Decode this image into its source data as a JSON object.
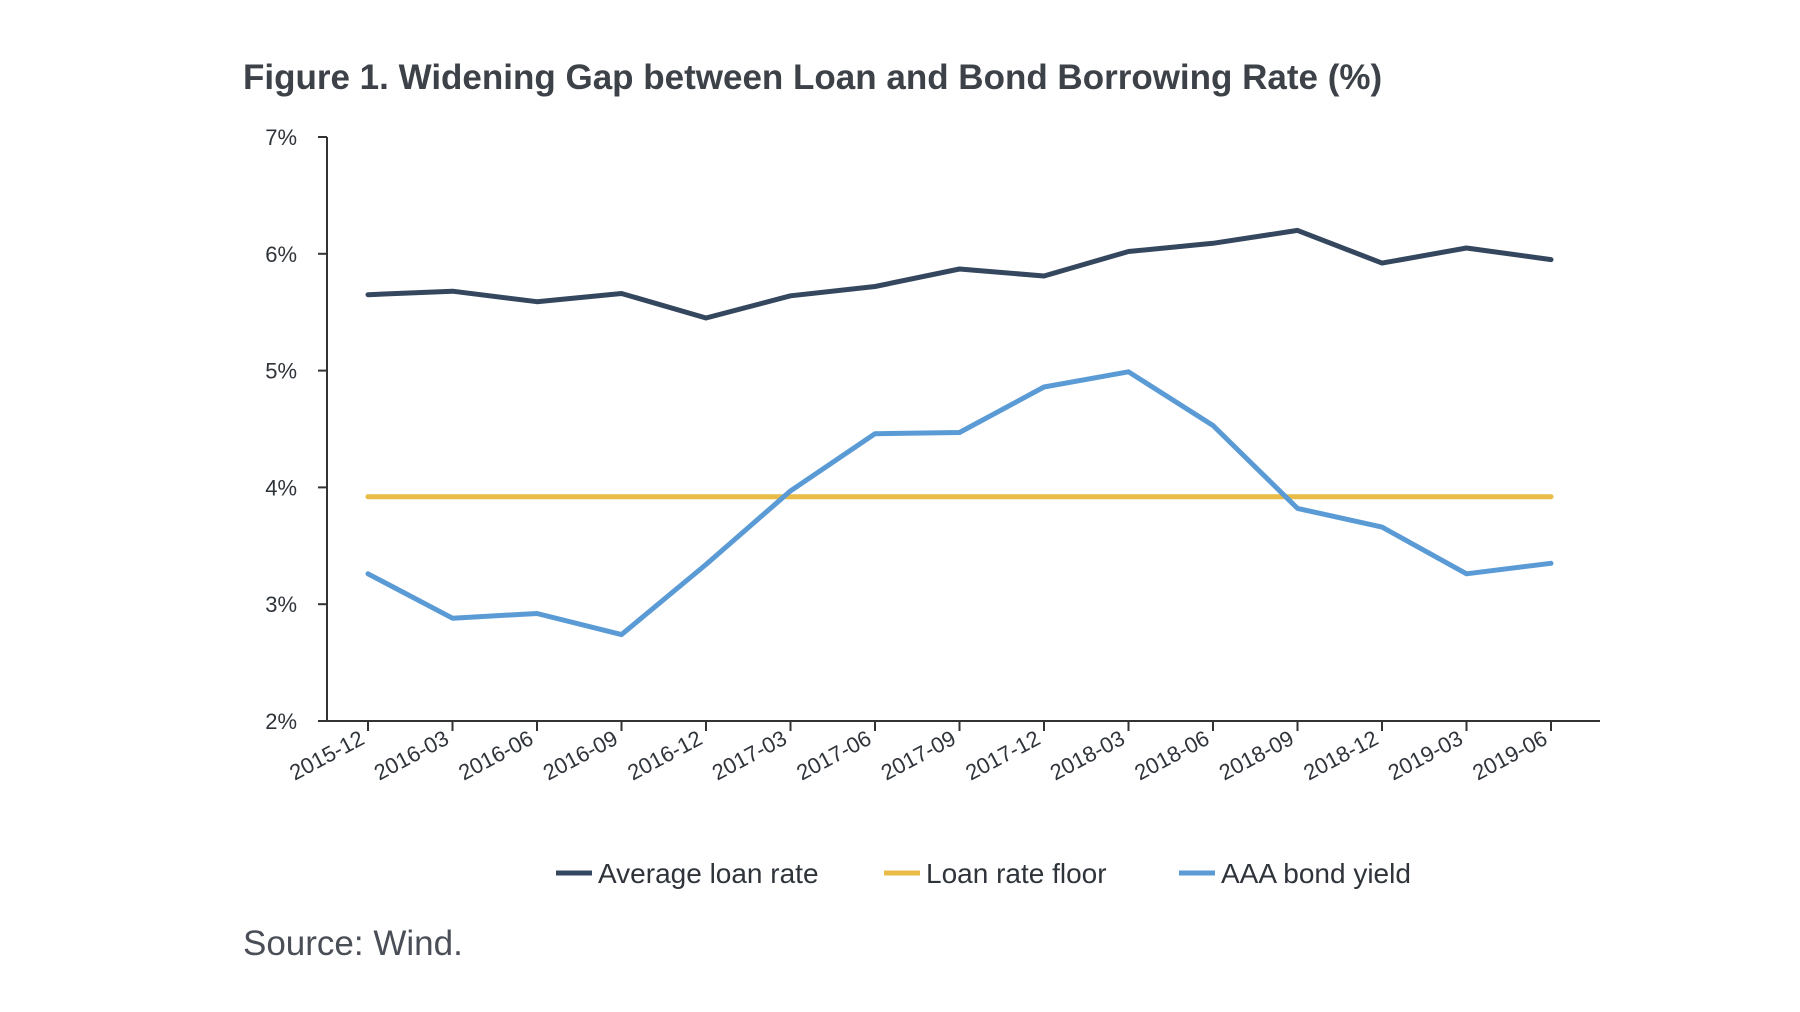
{
  "title": "Figure 1. Widening Gap between Loan and Bond Borrowing Rate (%)",
  "source": "Source: Wind.",
  "chart_data": {
    "type": "line",
    "title": "Figure 1. Widening Gap between Loan and Bond Borrowing Rate (%)",
    "xlabel": "",
    "ylabel": "",
    "categories": [
      "2015-12",
      "2016-03",
      "2016-06",
      "2016-09",
      "2016-12",
      "2017-03",
      "2017-06",
      "2017-09",
      "2017-12",
      "2018-03",
      "2018-06",
      "2018-09",
      "2018-12",
      "2019-03",
      "2019-06"
    ],
    "ylim": [
      2,
      7
    ],
    "yticks": [
      2,
      3,
      4,
      5,
      6,
      7
    ],
    "ytick_labels": [
      "2%",
      "3%",
      "4%",
      "5%",
      "6%",
      "7%"
    ],
    "grid": false,
    "legend_position": "bottom",
    "series": [
      {
        "name": "Average loan rate",
        "color": "#34475e",
        "values": [
          5.65,
          5.68,
          5.59,
          5.66,
          5.45,
          5.64,
          5.72,
          5.87,
          5.81,
          6.02,
          6.09,
          6.2,
          5.92,
          6.05,
          5.95
        ]
      },
      {
        "name": "Loan rate floor",
        "color": "#e8bc47",
        "values": [
          3.92,
          3.92,
          3.92,
          3.92,
          3.92,
          3.92,
          3.92,
          3.92,
          3.92,
          3.92,
          3.92,
          3.92,
          3.92,
          3.92,
          3.92
        ]
      },
      {
        "name": "AAA bond yield",
        "color": "#5a9bd5",
        "values": [
          3.26,
          2.88,
          2.92,
          2.74,
          3.34,
          3.97,
          4.46,
          4.47,
          4.86,
          4.99,
          4.53,
          3.82,
          3.66,
          3.26,
          3.35
        ]
      }
    ]
  }
}
